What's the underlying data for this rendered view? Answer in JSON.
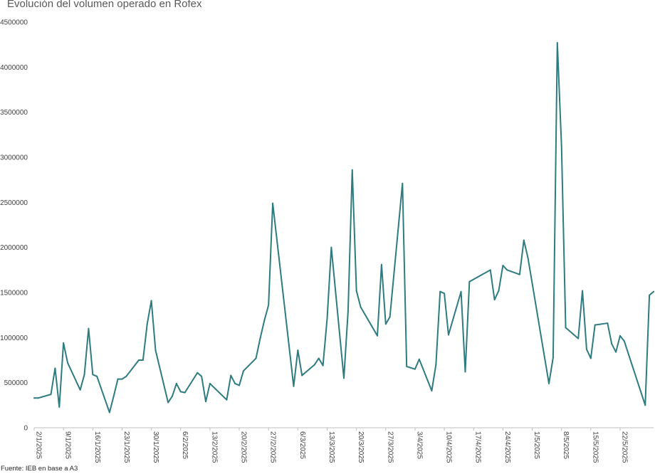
{
  "chart_data": {
    "type": "line",
    "title": "Evolución del volumen operado en Rofex",
    "source": "Fuente: IEB en base a A3",
    "x_start": "2025-01-02",
    "x_end": "2025-05-30",
    "ylim": [
      0,
      4500000
    ],
    "y_ticks": [
      0,
      500000,
      1000000,
      1500000,
      2000000,
      2500000,
      3000000,
      3500000,
      4000000,
      4500000
    ],
    "x_ticks": [
      "2/1/2025",
      "9/1/2025",
      "16/1/2025",
      "23/1/2025",
      "30/1/2025",
      "6/2/2025",
      "13/2/2025",
      "20/2/2025",
      "27/2/2025",
      "6/3/2025",
      "13/3/2025",
      "20/3/2025",
      "27/3/2025",
      "3/4/2025",
      "10/4/2025",
      "17/4/2025",
      "24/4/2025",
      "1/5/2025",
      "8/5/2025",
      "15/5/2025",
      "22/5/2025"
    ],
    "grid": false,
    "line_color": "#2e7b80",
    "series": [
      {
        "x": [
          "2025-01-02",
          "2025-01-03",
          "2025-01-06",
          "2025-01-07",
          "2025-01-08",
          "2025-01-09",
          "2025-01-10",
          "2025-01-13",
          "2025-01-14",
          "2025-01-15",
          "2025-01-16",
          "2025-01-17",
          "2025-01-20",
          "2025-01-21",
          "2025-01-22",
          "2025-01-23",
          "2025-01-24",
          "2025-01-27",
          "2025-01-28",
          "2025-01-29",
          "2025-01-30",
          "2025-01-31",
          "2025-02-03",
          "2025-02-04",
          "2025-02-05",
          "2025-02-06",
          "2025-02-07",
          "2025-02-10",
          "2025-02-11",
          "2025-02-12",
          "2025-02-13",
          "2025-02-17",
          "2025-02-18",
          "2025-02-19",
          "2025-02-20",
          "2025-02-21",
          "2025-02-24",
          "2025-02-25",
          "2025-02-26",
          "2025-02-27",
          "2025-02-28",
          "2025-03-05",
          "2025-03-06",
          "2025-03-07",
          "2025-03-10",
          "2025-03-11",
          "2025-03-12",
          "2025-03-13",
          "2025-03-14",
          "2025-03-17",
          "2025-03-18",
          "2025-03-19",
          "2025-03-20",
          "2025-03-21",
          "2025-03-25",
          "2025-03-26",
          "2025-03-27",
          "2025-03-28",
          "2025-03-31",
          "2025-04-01",
          "2025-04-03",
          "2025-04-04",
          "2025-04-07",
          "2025-04-08",
          "2025-04-09",
          "2025-04-10",
          "2025-04-11",
          "2025-04-14",
          "2025-04-15",
          "2025-04-16",
          "2025-04-21",
          "2025-04-22",
          "2025-04-23",
          "2025-04-24",
          "2025-04-25",
          "2025-04-28",
          "2025-04-29",
          "2025-04-30",
          "2025-05-05",
          "2025-05-06",
          "2025-05-07",
          "2025-05-08",
          "2025-05-09",
          "2025-05-12",
          "2025-05-13",
          "2025-05-14",
          "2025-05-15",
          "2025-05-16",
          "2025-05-19",
          "2025-05-20",
          "2025-05-21",
          "2025-05-22",
          "2025-05-23",
          "2025-05-28",
          "2025-05-29",
          "2025-05-30"
        ],
        "values": [
          330000,
          330000,
          370000,
          660000,
          230000,
          940000,
          720000,
          420000,
          590000,
          1100000,
          590000,
          570000,
          170000,
          350000,
          540000,
          540000,
          570000,
          750000,
          750000,
          1150000,
          1410000,
          860000,
          280000,
          350000,
          490000,
          400000,
          390000,
          610000,
          570000,
          290000,
          490000,
          310000,
          580000,
          490000,
          470000,
          630000,
          770000,
          990000,
          1190000,
          1360000,
          2490000,
          460000,
          860000,
          580000,
          700000,
          770000,
          690000,
          1210000,
          2000000,
          550000,
          1290000,
          2860000,
          1520000,
          1340000,
          1020000,
          1810000,
          1150000,
          1230000,
          2710000,
          680000,
          650000,
          760000,
          410000,
          700000,
          1510000,
          1490000,
          1030000,
          1510000,
          620000,
          1620000,
          1750000,
          1420000,
          1520000,
          1800000,
          1750000,
          1700000,
          2080000,
          1880000,
          490000,
          780000,
          4270000,
          3130000,
          1110000,
          990000,
          1520000,
          870000,
          770000,
          1140000,
          1160000,
          930000,
          840000,
          1020000,
          960000,
          250000,
          1470000,
          1510000
        ]
      }
    ]
  }
}
